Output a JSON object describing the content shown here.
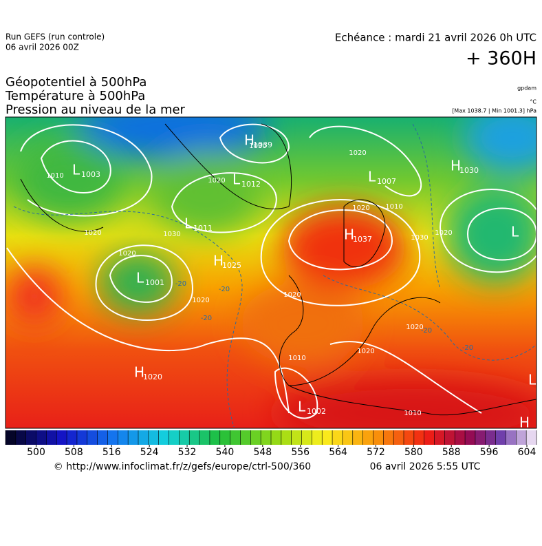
{
  "header": {
    "run": "Run GEFS (run controle)",
    "run_date": "06 avril 2026 00Z",
    "echeance": "Echéance : mardi 21 avril 2026 0h UTC",
    "offset": "+ 360H"
  },
  "titles": [
    "Géopotentiel à 500hPa",
    "Température à 500hPa",
    "Pression au niveau de la mer"
  ],
  "units": {
    "geopotential": "gpdam",
    "temperature": "°C",
    "pressure": "[Max 1038.7 | Min 1001.3] hPa"
  },
  "centers": [
    {
      "letter": "H",
      "value": "1039"
    },
    {
      "letter": "L",
      "value": "1003"
    },
    {
      "letter": "L",
      "value": "1012"
    },
    {
      "letter": "L",
      "value": "1007"
    },
    {
      "letter": "H",
      "value": "1030"
    },
    {
      "letter": "L",
      "value": "1011"
    },
    {
      "letter": "H",
      "value": "1037"
    },
    {
      "letter": "H",
      "value": "1025"
    },
    {
      "letter": "L",
      "value": "1001"
    },
    {
      "letter": "H",
      "value": "1020"
    },
    {
      "letter": "L",
      "value": "1002"
    },
    {
      "letter": "L",
      "value": null
    },
    {
      "letter": "L",
      "value": null
    },
    {
      "letter": "H",
      "value": null
    }
  ],
  "isobar_labels": [
    "1010",
    "1020",
    "1020",
    "1030",
    "1020",
    "1020",
    "1020",
    "1030",
    "1020",
    "1010",
    "1020",
    "1010",
    "1020",
    "1010",
    "1020",
    "1030",
    "1020"
  ],
  "isotherm_labels": [
    "-20",
    "-20",
    "-20",
    "-20",
    "-20"
  ],
  "colorbar": {
    "ticks": [
      500,
      508,
      516,
      524,
      532,
      540,
      548,
      556,
      564,
      572,
      580,
      588,
      596,
      604
    ]
  },
  "footer": {
    "source": "© http://www.infoclimat.fr/z/gefs/europe/ctrl-500/360",
    "generated": "06 avril 2026  5:55 UTC"
  }
}
